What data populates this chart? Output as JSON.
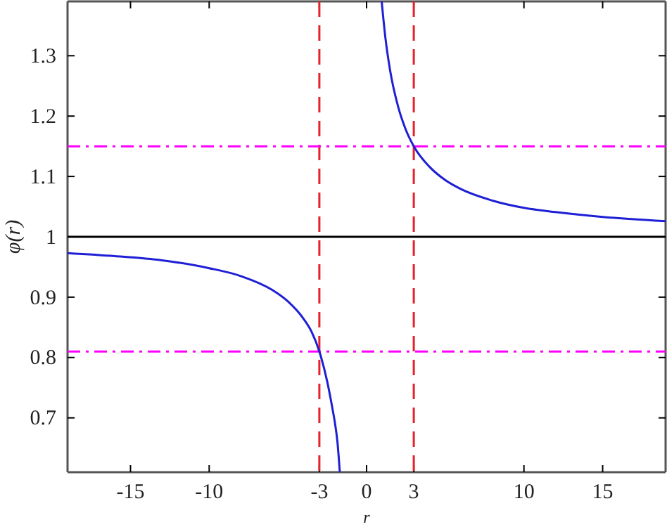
{
  "chart_data": {
    "type": "line",
    "xlabel": "r",
    "ylabel": "φ(r)",
    "xlim": [
      -19,
      19
    ],
    "xticks": [
      -15,
      -10,
      -3,
      0,
      3,
      10,
      15
    ],
    "ylim": [
      0.61,
      1.39
    ],
    "yticks": [
      0.7,
      0.8,
      0.9,
      1,
      1.1,
      1.2,
      1.3
    ],
    "grid": false,
    "marker": "none",
    "line_style": "solid",
    "series": [
      {
        "color": "#1f1fd6",
        "x": [
          -19,
          -16,
          -13,
          -10,
          -8,
          -6,
          -5,
          -4,
          -3.5,
          -3,
          -2.5,
          -2.2,
          -2,
          -1.85,
          -1.7
        ],
        "values": [
          0.973,
          0.968,
          0.961,
          0.948,
          0.935,
          0.912,
          0.893,
          0.864,
          0.843,
          0.81,
          0.76,
          0.72,
          0.69,
          0.66,
          0.61
        ]
      },
      {
        "color": "#1f1fd6",
        "x": [
          0.96,
          1.2,
          1.5,
          2,
          2.5,
          3,
          4,
          5,
          6,
          8,
          10,
          12,
          15,
          19
        ],
        "values": [
          1.39,
          1.329,
          1.275,
          1.216,
          1.177,
          1.15,
          1.116,
          1.094,
          1.079,
          1.06,
          1.048,
          1.041,
          1.033,
          1.026
        ]
      }
    ],
    "ref_lines": [
      {
        "axis": "x",
        "value": -3,
        "color": "#e8202a",
        "line_style": "dashed"
      },
      {
        "axis": "x",
        "value": 3,
        "color": "#e8202a",
        "line_style": "dashed"
      },
      {
        "axis": "y",
        "value": 1.15,
        "color": "#ff00ff",
        "line_style": "dashdot"
      },
      {
        "axis": "y",
        "value": 0.81,
        "color": "#ff00ff",
        "line_style": "dashdot"
      },
      {
        "axis": "y",
        "value": 1,
        "color": "#000000",
        "line_style": "solid"
      }
    ]
  }
}
